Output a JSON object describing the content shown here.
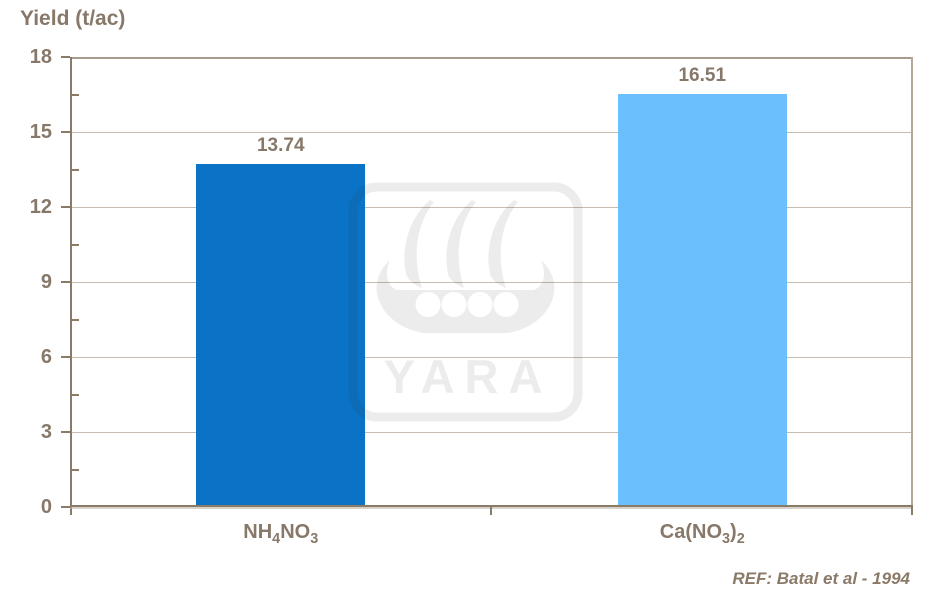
{
  "chart_data": {
    "type": "bar",
    "title": "Yield (t/ac)",
    "categories": [
      "NH4NO3",
      "Ca(NO3)2"
    ],
    "category_labels": [
      {
        "parts": [
          {
            "text": "NH"
          },
          {
            "sub": "4"
          },
          {
            "text": "NO"
          },
          {
            "sub": "3"
          }
        ]
      },
      {
        "parts": [
          {
            "text": "Ca(NO"
          },
          {
            "sub": "3"
          },
          {
            "text": ")"
          },
          {
            "sub": "2"
          }
        ]
      }
    ],
    "values": [
      13.74,
      16.51
    ],
    "value_labels": [
      "13.74",
      "16.51"
    ],
    "bar_colors": [
      "#0a73c6",
      "#6abffc"
    ],
    "xlabel": "",
    "ylabel": "Yield (t/ac)",
    "ylim": [
      0,
      18
    ],
    "yticks": [
      0,
      3,
      6,
      9,
      12,
      15,
      18
    ],
    "minor_yticks": [
      1.5,
      4.5,
      7.5,
      10.5,
      13.5,
      16.5
    ],
    "gridlines": [
      3,
      6,
      9,
      12,
      15
    ],
    "grid": true,
    "legend": "none",
    "watermark": "YARA",
    "reference": "REF: Batal et al - 1994",
    "axis_color": "#8a7a68",
    "text_color": "#87786a",
    "gridline_color": "#c6bdb0"
  }
}
